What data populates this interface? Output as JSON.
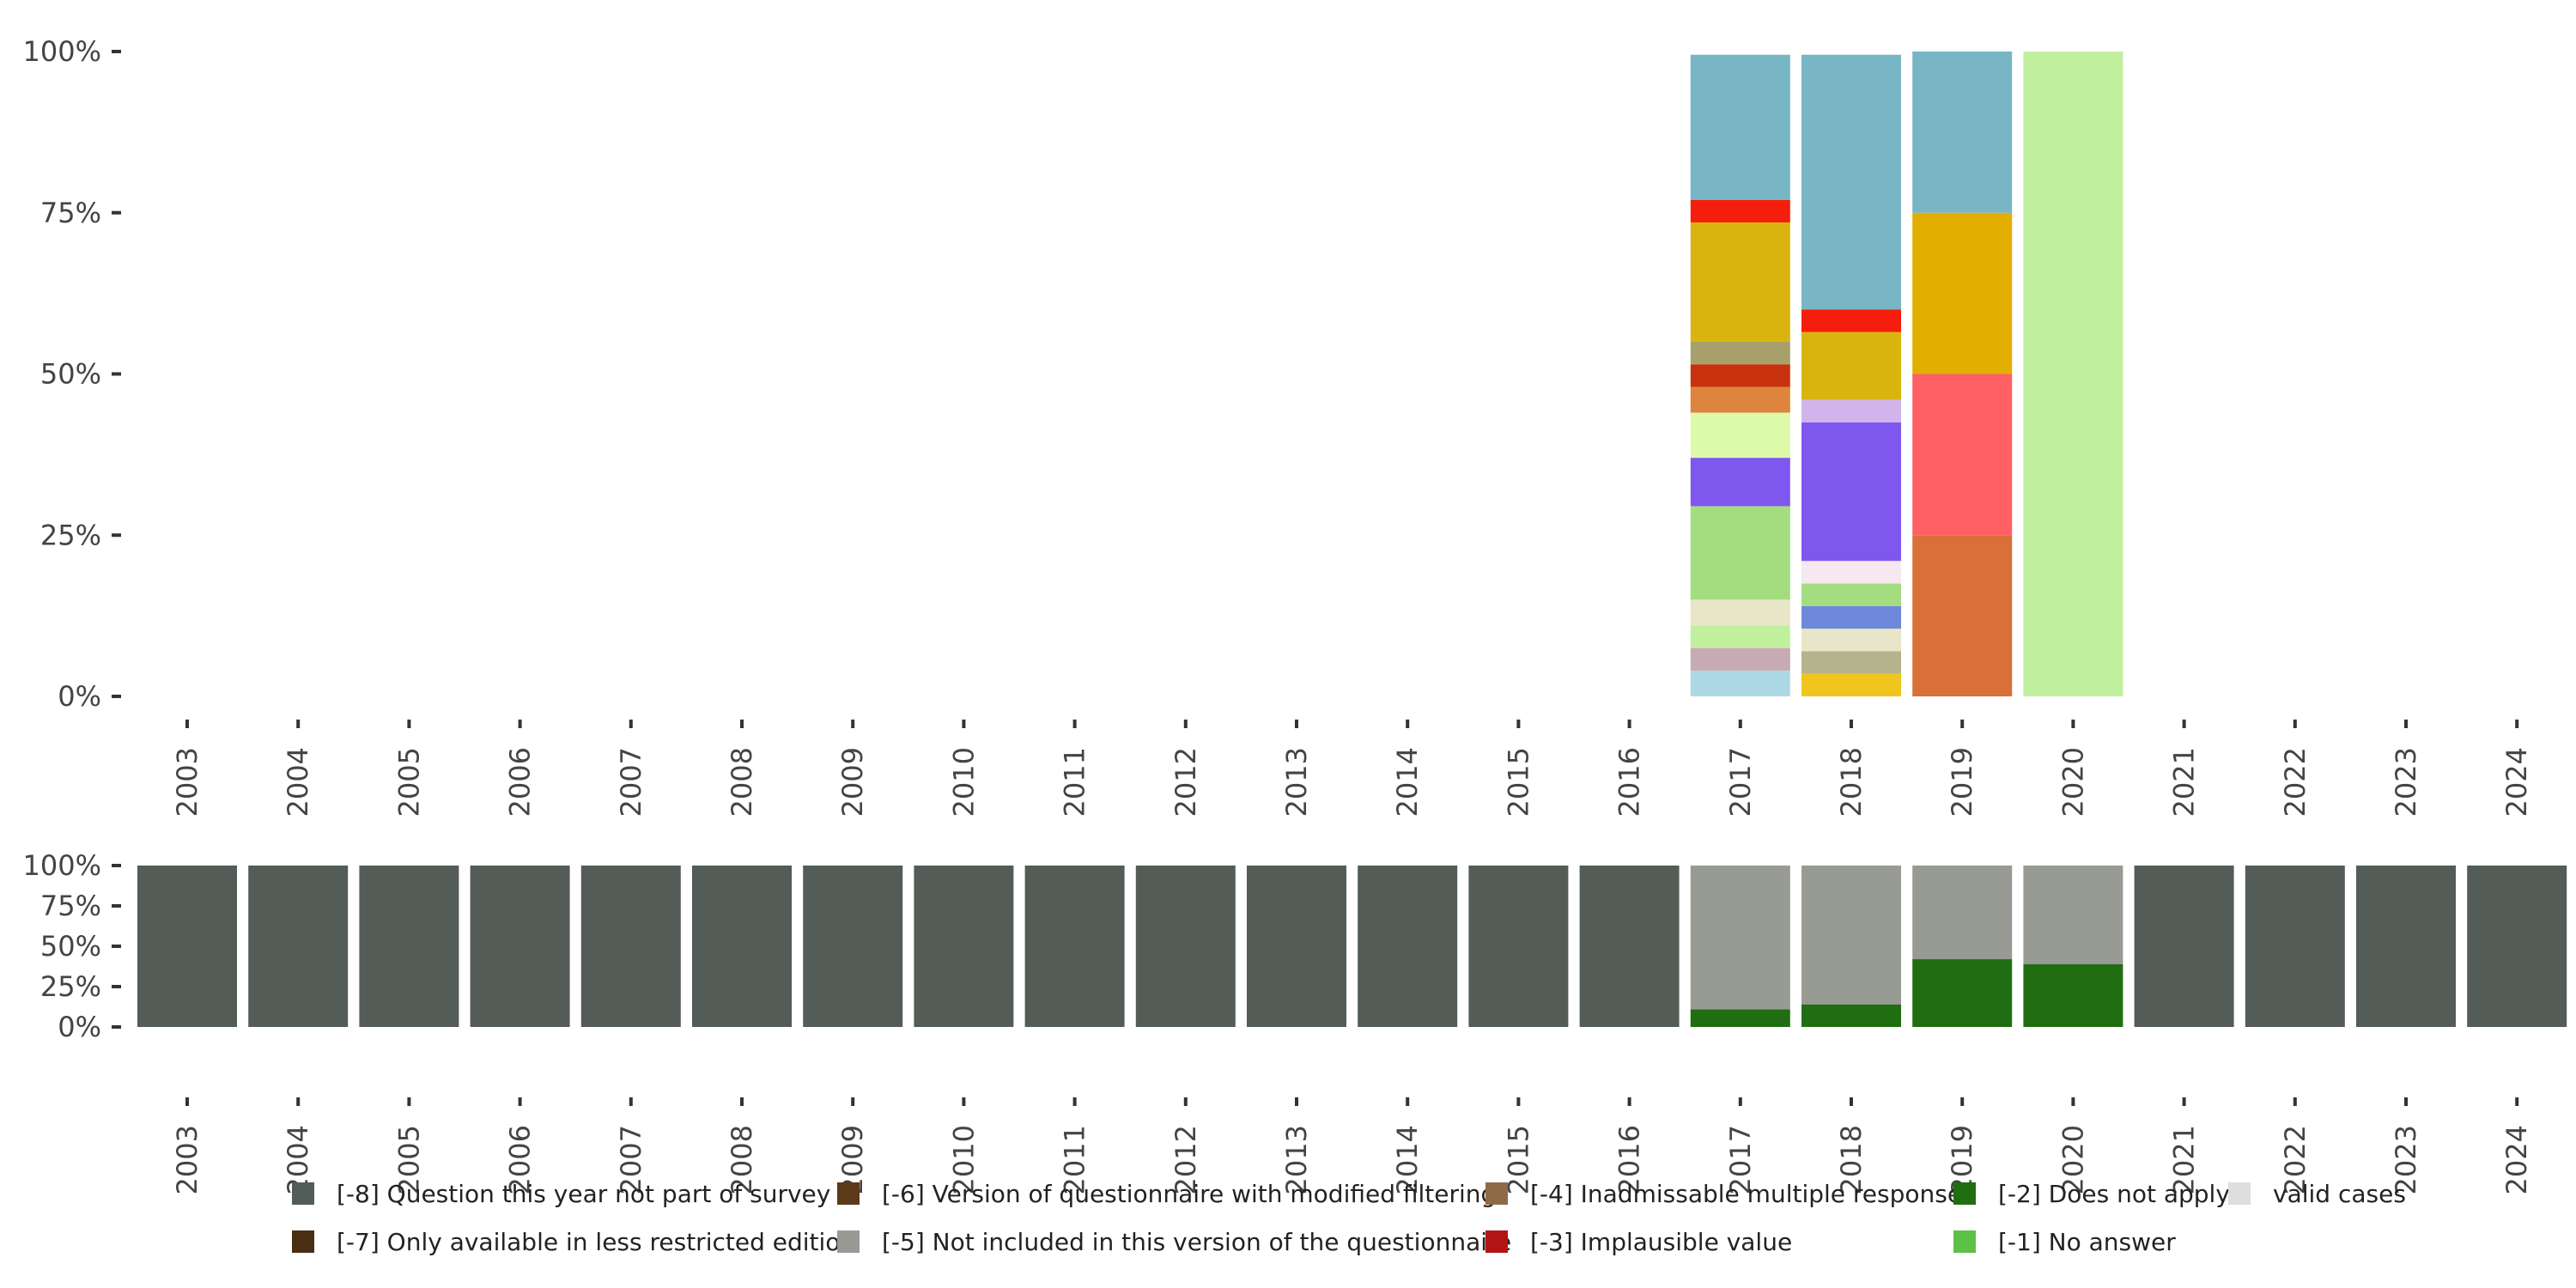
{
  "chart_data": [
    {
      "type": "bar",
      "stacked": true,
      "role": "valid-cases distribution",
      "categories": [
        "2003",
        "2004",
        "2005",
        "2006",
        "2007",
        "2008",
        "2009",
        "2010",
        "2011",
        "2012",
        "2013",
        "2014",
        "2015",
        "2016",
        "2017",
        "2018",
        "2019",
        "2020",
        "2021",
        "2022",
        "2023",
        "2024"
      ],
      "ylim": [
        0,
        100
      ],
      "yticks": [
        "0%",
        "25%",
        "50%",
        "75%",
        "100%"
      ],
      "ytick_values": [
        0,
        25,
        50,
        75,
        100
      ],
      "stacks": {
        "2017": [
          {
            "value": 4,
            "color": "#add8e6"
          },
          {
            "value": 3.5,
            "color": "#c8aab4"
          },
          {
            "value": 3.5,
            "color": "#c0f09e"
          },
          {
            "value": 4,
            "color": "#e8e6c8"
          },
          {
            "value": 14.5,
            "color": "#a4dc80"
          },
          {
            "value": 7.5,
            "color": "#7e58ee"
          },
          {
            "value": 7,
            "color": "#dcfaaa"
          },
          {
            "value": 4,
            "color": "#de843c"
          },
          {
            "value": 3.5,
            "color": "#c8320e"
          },
          {
            "value": 3.5,
            "color": "#a8a06a"
          },
          {
            "value": 18.5,
            "color": "#dab40e"
          },
          {
            "value": 3.5,
            "color": "#f51e0c"
          },
          {
            "value": 22.5,
            "color": "#78b6c6"
          }
        ],
        "2018": [
          {
            "value": 3.5,
            "color": "#f0c61e"
          },
          {
            "value": 3.5,
            "color": "#b4b48c"
          },
          {
            "value": 3.5,
            "color": "#e8e6c8"
          },
          {
            "value": 3.5,
            "color": "#6e88dc"
          },
          {
            "value": 3.5,
            "color": "#a4dc80"
          },
          {
            "value": 3.5,
            "color": "#f6e8f0"
          },
          {
            "value": 21.5,
            "color": "#7e58ee"
          },
          {
            "value": 3.5,
            "color": "#d2b4ec"
          },
          {
            "value": 10.5,
            "color": "#dab40e"
          },
          {
            "value": 3.5,
            "color": "#f51e0c"
          },
          {
            "value": 39.5,
            "color": "#78b6c6"
          }
        ],
        "2019": [
          {
            "value": 25,
            "color": "#d87038"
          },
          {
            "value": 25,
            "color": "#fe6066"
          },
          {
            "value": 25,
            "color": "#e2ae00"
          },
          {
            "value": 25,
            "color": "#78b6c6"
          }
        ],
        "2020": [
          {
            "value": 100,
            "color": "#c0f09e"
          }
        ]
      }
    },
    {
      "type": "bar",
      "stacked": true,
      "role": "missing-values overview",
      "categories": [
        "2003",
        "2004",
        "2005",
        "2006",
        "2007",
        "2008",
        "2009",
        "2010",
        "2011",
        "2012",
        "2013",
        "2014",
        "2015",
        "2016",
        "2017",
        "2018",
        "2019",
        "2020",
        "2021",
        "2022",
        "2023",
        "2024"
      ],
      "ylim": [
        0,
        100
      ],
      "yticks": [
        "0%",
        "25%",
        "50%",
        "75%",
        "100%"
      ],
      "ytick_values": [
        0,
        25,
        50,
        75,
        100
      ],
      "series": [
        {
          "name": "[-8] Question this year not part of survey",
          "color": "#535c56",
          "values": [
            100,
            100,
            100,
            100,
            100,
            100,
            100,
            100,
            100,
            100,
            100,
            100,
            100,
            100,
            0,
            0,
            0,
            0,
            100,
            100,
            100,
            100
          ]
        },
        {
          "name": "[-2] Does not apply",
          "color": "#216e12",
          "values": [
            0,
            0,
            0,
            0,
            0,
            0,
            0,
            0,
            0,
            0,
            0,
            0,
            0,
            0,
            11,
            14,
            42,
            39,
            0,
            0,
            0,
            0
          ]
        },
        {
          "name": "[-5] Not included in this version of the questionnaire",
          "color": "#979b94",
          "values": [
            0,
            0,
            0,
            0,
            0,
            0,
            0,
            0,
            0,
            0,
            0,
            0,
            0,
            0,
            89,
            86,
            58,
            61,
            0,
            0,
            0,
            0
          ]
        }
      ]
    }
  ],
  "legend": [
    {
      "label": "[-8] Question this year not part of survey",
      "color": "#535c56"
    },
    {
      "label": "[-7] Only available in less restricted edition",
      "color": "#4a2e14"
    },
    {
      "label": "[-6] Version of questionnaire with modified filtering",
      "color": "#5c3a1a"
    },
    {
      "label": "[-5] Not included in this version of the questionnaire",
      "color": "#979b94"
    },
    {
      "label": "[-4] Inadmissable multiple response",
      "color": "#8f6a46"
    },
    {
      "label": "[-3] Implausible value",
      "color": "#b31414"
    },
    {
      "label": "[-2] Does not apply",
      "color": "#216e12"
    },
    {
      "label": "[-1] No answer",
      "color": "#5dc147"
    },
    {
      "label": "valid cases",
      "color": "#dedfdc"
    }
  ]
}
